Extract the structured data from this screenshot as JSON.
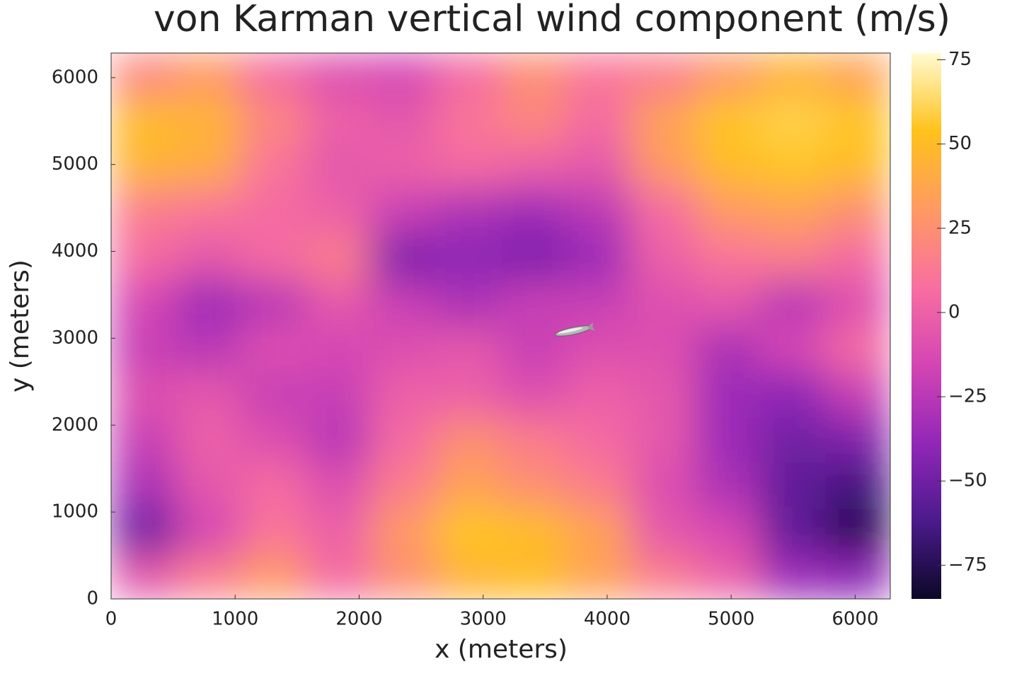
{
  "chart_data": {
    "type": "heatmap",
    "title": "von Karman vertical wind component (m/s)",
    "xlabel": "x (meters)",
    "ylabel": "y (meters)",
    "xlim": [
      0,
      6283
    ],
    "ylim": [
      0,
      6283
    ],
    "xticks": [
      0,
      1000,
      2000,
      3000,
      4000,
      5000,
      6000
    ],
    "yticks": [
      0,
      1000,
      2000,
      3000,
      4000,
      5000,
      6000
    ],
    "clim": [
      -85,
      77
    ],
    "cticks": [
      {
        "value": -75,
        "label": "−75"
      },
      {
        "value": -50,
        "label": "−50"
      },
      {
        "value": -25,
        "label": "−25"
      },
      0,
      25,
      50,
      75
    ],
    "colormap": [
      "#0c0827",
      "#4b1a8c",
      "#9227b8",
      "#d445b4",
      "#f86fa0",
      "#ff9a62",
      "#ffc21a",
      "#fffbd2"
    ],
    "z": [
      [
        20,
        30,
        5,
        -10,
        -15,
        5,
        25,
        10,
        15,
        30,
        45,
        35
      ],
      [
        50,
        45,
        20,
        0,
        -5,
        10,
        20,
        5,
        35,
        55,
        60,
        55
      ],
      [
        45,
        40,
        10,
        -5,
        0,
        5,
        0,
        -5,
        30,
        50,
        55,
        50
      ],
      [
        15,
        10,
        5,
        0,
        -20,
        -30,
        -35,
        -25,
        5,
        30,
        35,
        25
      ],
      [
        5,
        -5,
        5,
        15,
        -45,
        -40,
        -45,
        -35,
        0,
        10,
        15,
        5
      ],
      [
        -15,
        -35,
        -25,
        -5,
        -20,
        -30,
        -20,
        -20,
        -10,
        -5,
        -25,
        -10
      ],
      [
        -20,
        -25,
        -10,
        -15,
        -10,
        -5,
        -20,
        -10,
        -10,
        -30,
        -15,
        5
      ],
      [
        -10,
        -5,
        -20,
        -20,
        0,
        0,
        -10,
        0,
        -5,
        -35,
        -40,
        -20
      ],
      [
        -20,
        0,
        -10,
        -25,
        5,
        25,
        15,
        5,
        -5,
        -35,
        -50,
        -45
      ],
      [
        -30,
        -5,
        5,
        -10,
        15,
        35,
        25,
        15,
        -10,
        -30,
        -55,
        -65
      ],
      [
        -50,
        -15,
        10,
        0,
        30,
        55,
        50,
        35,
        -5,
        -15,
        -55,
        -75
      ],
      [
        -5,
        15,
        30,
        5,
        25,
        45,
        50,
        35,
        15,
        0,
        -35,
        -40
      ]
    ]
  }
}
